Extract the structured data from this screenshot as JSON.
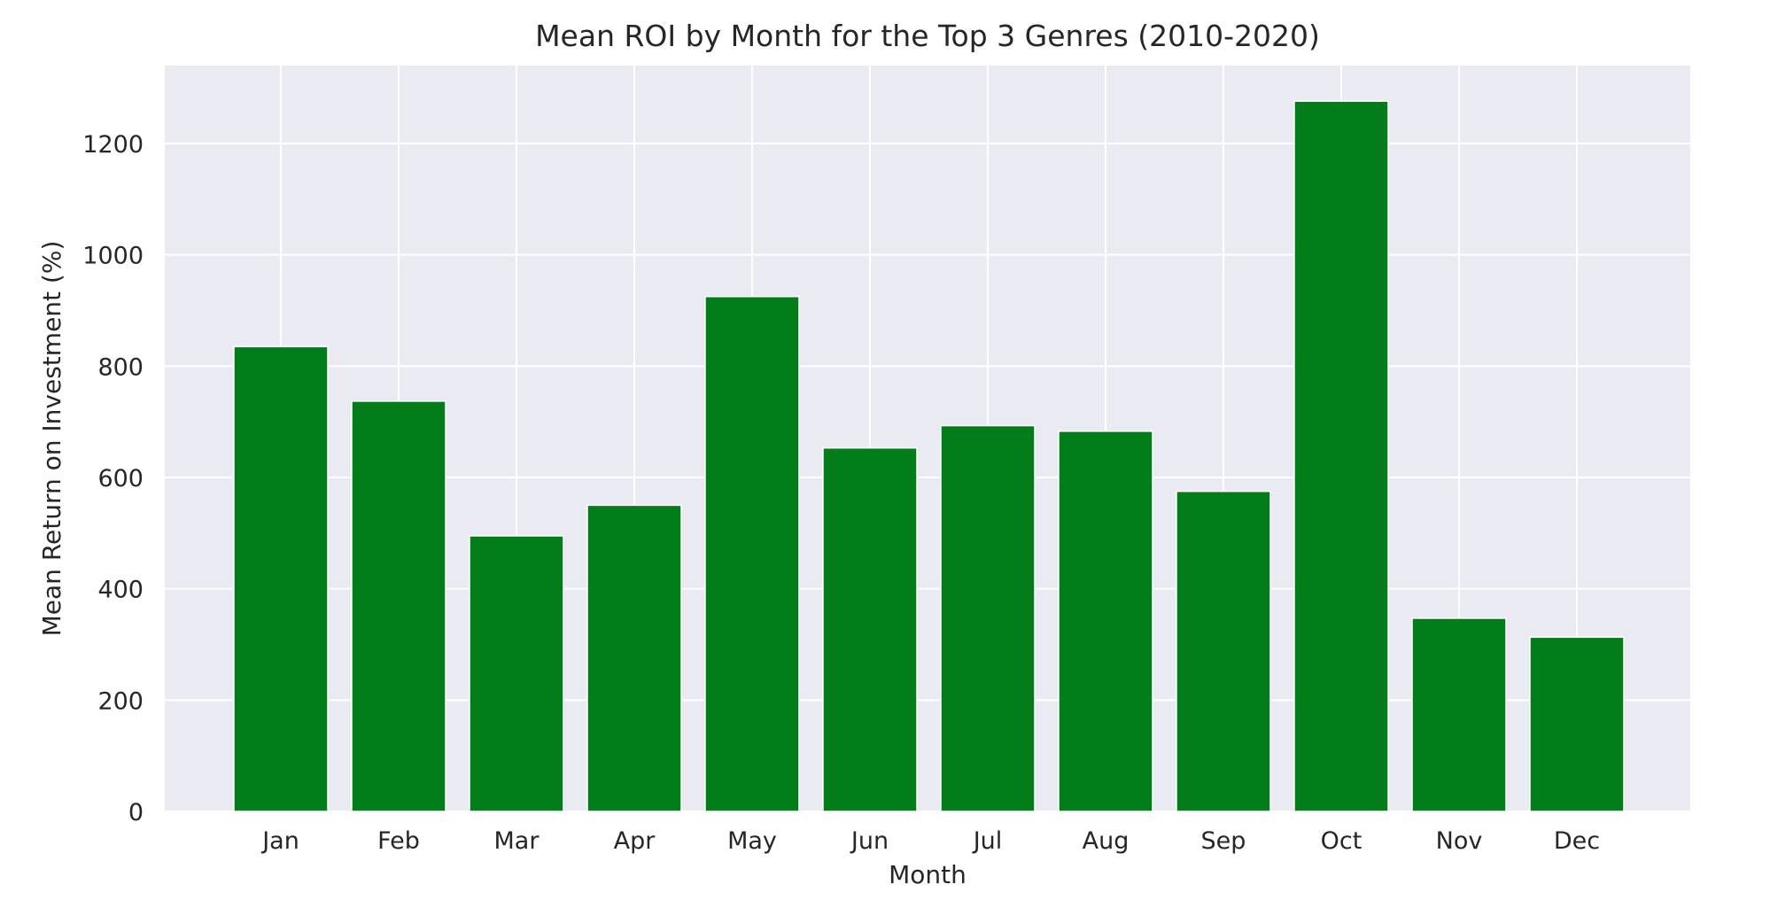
{
  "chart_data": {
    "type": "bar",
    "title": "Mean ROI by Month for the Top 3 Genres (2010-2020)",
    "xlabel": "Month",
    "ylabel": "Mean Return on Investment (%)",
    "categories": [
      "Jan",
      "Feb",
      "Mar",
      "Apr",
      "May",
      "Jun",
      "Jul",
      "Aug",
      "Sep",
      "Oct",
      "Nov",
      "Dec"
    ],
    "values": [
      835,
      737,
      495,
      550,
      925,
      653,
      693,
      683,
      575,
      1276,
      347,
      313
    ],
    "ylim": [
      0,
      1340
    ],
    "yticks": [
      0,
      200,
      400,
      600,
      800,
      1000,
      1200
    ],
    "grid": true,
    "colors": {
      "bar": "#037d1a",
      "plot_background": "#eaeaf2",
      "grid": "#ffffff"
    }
  }
}
